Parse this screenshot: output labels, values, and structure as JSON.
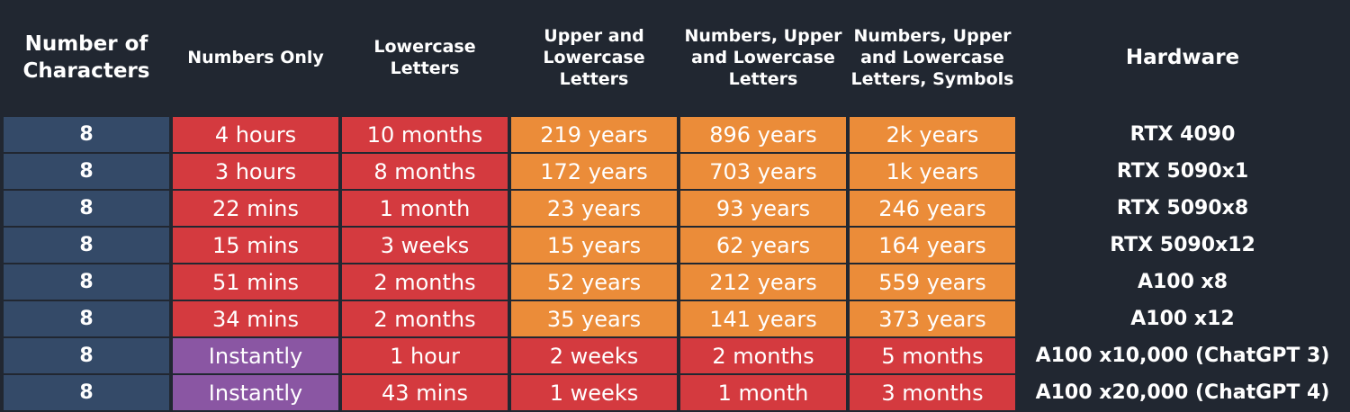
{
  "colors": {
    "background": "#212731",
    "chars": "#344a68",
    "red": "#d43a3f",
    "orange": "#eb8c39",
    "purple": "#8a56a3",
    "hardware": "#212731"
  },
  "headers": [
    "Number of Characters",
    "Numbers Only",
    "Lowercase Letters",
    "Upper and Lowercase Letters",
    "Numbers, Upper and Lowercase Letters",
    "Numbers, Upper and Lowercase Letters, Symbols",
    "Hardware"
  ],
  "chart_data": {
    "type": "table",
    "columns": [
      "Number of Characters",
      "Numbers Only",
      "Lowercase Letters",
      "Upper and Lowercase Letters",
      "Numbers, Upper and Lowercase Letters",
      "Numbers, Upper and Lowercase Letters, Symbols",
      "Hardware"
    ],
    "rows": [
      {
        "cells": [
          "8",
          "4 hours",
          "10 months",
          "219 years",
          "896 years",
          "2k years",
          "RTX 4090"
        ],
        "colors": [
          "chars",
          "red",
          "red",
          "orange",
          "orange",
          "orange",
          "hardware"
        ]
      },
      {
        "cells": [
          "8",
          "3 hours",
          "8 months",
          "172 years",
          "703 years",
          "1k years",
          "RTX 5090x1"
        ],
        "colors": [
          "chars",
          "red",
          "red",
          "orange",
          "orange",
          "orange",
          "hardware"
        ]
      },
      {
        "cells": [
          "8",
          "22 mins",
          "1 month",
          "23 years",
          "93 years",
          "246 years",
          "RTX 5090x8"
        ],
        "colors": [
          "chars",
          "red",
          "red",
          "orange",
          "orange",
          "orange",
          "hardware"
        ]
      },
      {
        "cells": [
          "8",
          "15 mins",
          "3 weeks",
          "15 years",
          "62 years",
          "164 years",
          "RTX 5090x12"
        ],
        "colors": [
          "chars",
          "red",
          "red",
          "orange",
          "orange",
          "orange",
          "hardware"
        ]
      },
      {
        "cells": [
          "8",
          "51 mins",
          "2 months",
          "52 years",
          "212 years",
          "559 years",
          "A100 x8"
        ],
        "colors": [
          "chars",
          "red",
          "red",
          "orange",
          "orange",
          "orange",
          "hardware"
        ]
      },
      {
        "cells": [
          "8",
          "34 mins",
          "2 months",
          "35 years",
          "141 years",
          "373 years",
          "A100 x12"
        ],
        "colors": [
          "chars",
          "red",
          "red",
          "orange",
          "orange",
          "orange",
          "hardware"
        ]
      },
      {
        "cells": [
          "8",
          "Instantly",
          "1 hour",
          "2 weeks",
          "2 months",
          "5 months",
          "A100 x10,000 (ChatGPT 3)"
        ],
        "colors": [
          "chars",
          "purple",
          "red",
          "red",
          "red",
          "red",
          "hardware"
        ]
      },
      {
        "cells": [
          "8",
          "Instantly",
          "43 mins",
          "1 weeks",
          "1 month",
          "3 months",
          "A100 x20,000 (ChatGPT 4)"
        ],
        "colors": [
          "chars",
          "purple",
          "red",
          "red",
          "red",
          "red",
          "hardware"
        ]
      }
    ]
  }
}
